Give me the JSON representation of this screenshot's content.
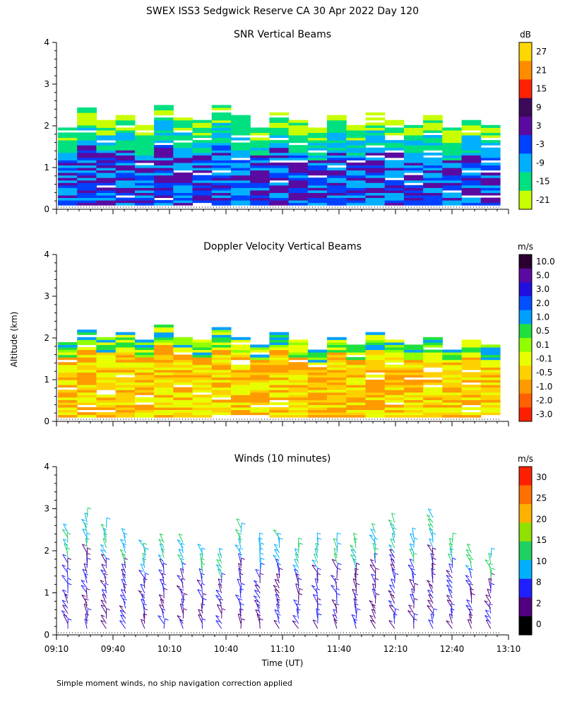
{
  "title": "SWEX ISS3 Sedgwick Reserve CA  30 Apr 2022 Day 120",
  "ylabel": "Altitude (km)",
  "xlabel": "Time (UT)",
  "footnote": "Simple moment winds, no ship navigation correction applied",
  "chart_data": [
    {
      "type": "heatmap",
      "title": "SNR Vertical Beams",
      "unit": "dB",
      "ylim": [
        0,
        4
      ],
      "yticks": [
        "0",
        "1",
        "2",
        "3",
        "4"
      ],
      "colorbar": {
        "labels": [
          "27",
          "21",
          "15",
          "9",
          "3",
          "-3",
          "-9",
          "-15",
          "-21"
        ],
        "colors": [
          "#ffd700",
          "#ff8c00",
          "#ff2200",
          "#3b0a5a",
          "#5a0aa0",
          "#0040ff",
          "#00b0ff",
          "#00e080",
          "#c8ff00"
        ]
      },
      "profile_top_km": [
        2.0,
        2.4,
        2.1,
        2.2,
        2.0,
        2.6,
        2.3,
        2.1,
        2.5,
        2.2,
        2.0,
        2.3,
        2.1,
        1.9,
        2.2,
        2.0,
        2.3,
        2.1,
        2.0,
        2.2,
        1.9,
        2.1,
        2.0
      ]
    },
    {
      "type": "heatmap",
      "title": "Doppler Velocity Vertical Beams",
      "unit": "m/s",
      "ylim": [
        0,
        4
      ],
      "yticks": [
        "0",
        "1",
        "2",
        "3",
        "4"
      ],
      "colorbar": {
        "labels": [
          "10.0",
          "5.0",
          "3.0",
          "2.0",
          "1.0",
          "0.5",
          "0.1",
          "-0.1",
          "-0.5",
          "-1.0",
          "-2.0",
          "-3.0"
        ],
        "colors": [
          "#2a0030",
          "#5a0aa0",
          "#2010e0",
          "#0050ff",
          "#00a0ff",
          "#20e040",
          "#90ff00",
          "#e8ff00",
          "#ffd000",
          "#ff9a00",
          "#ff6000",
          "#ff2000"
        ]
      },
      "profile_top_km": [
        1.9,
        2.2,
        2.0,
        2.1,
        1.9,
        2.3,
        2.0,
        1.9,
        2.2,
        2.0,
        1.8,
        2.1,
        1.9,
        1.7,
        2.0,
        1.8,
        2.1,
        1.9,
        1.8,
        2.0,
        1.7,
        1.9,
        1.8
      ]
    },
    {
      "type": "scatter",
      "title": "Winds (10 minutes)",
      "unit": "m/s",
      "ylim": [
        0,
        4
      ],
      "yticks": [
        "0",
        "1",
        "2",
        "3",
        "4"
      ],
      "xticks": [
        "09:10",
        "09:40",
        "10:10",
        "10:40",
        "11:10",
        "11:40",
        "12:10",
        "12:40",
        "13:10"
      ],
      "colorbar": {
        "labels": [
          "30",
          "25",
          "20",
          "15",
          "10",
          "8",
          "2",
          "0"
        ],
        "colors": [
          "#ff2000",
          "#ff7000",
          "#ffb000",
          "#90e000",
          "#20d060",
          "#00b0ff",
          "#2020ff",
          "#500080",
          "#000000"
        ]
      },
      "profile_top_km": [
        2.5,
        2.8,
        2.6,
        2.4,
        2.1,
        2.3,
        2.2,
        2.0,
        1.9,
        2.6,
        2.2,
        2.4,
        2.1,
        2.2,
        2.3,
        2.2,
        2.5,
        2.7,
        2.4,
        2.9,
        2.3,
        2.0,
        1.9
      ]
    }
  ]
}
